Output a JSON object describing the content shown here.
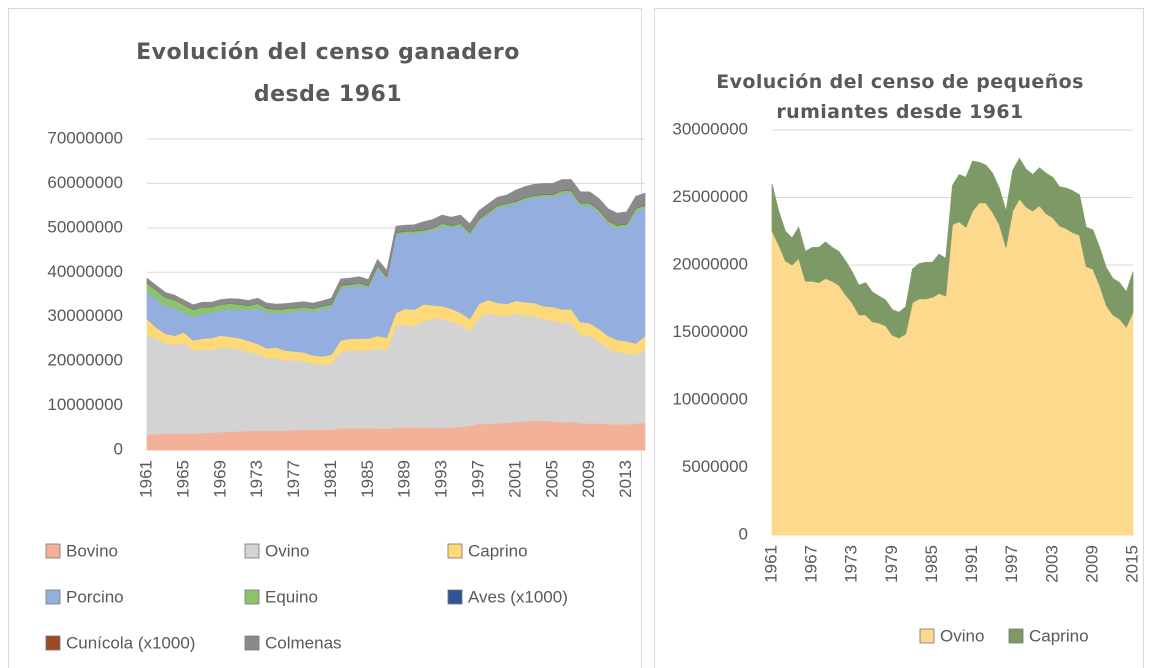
{
  "chart_data": [
    {
      "type": "stacked_area",
      "title": "Evolución del censo ganadero desde 1961",
      "categories": [
        "1961",
        null,
        null,
        null,
        "1965",
        null,
        null,
        null,
        "1969",
        null,
        null,
        null,
        "1973",
        null,
        null,
        null,
        "1977",
        null,
        null,
        null,
        "1981",
        null,
        null,
        null,
        "1985",
        null,
        null,
        null,
        "1989",
        null,
        null,
        null,
        "1993",
        null,
        null,
        null,
        "1997",
        null,
        null,
        null,
        "2001",
        null,
        null,
        null,
        "2005",
        null,
        null,
        null,
        "2009",
        null,
        null,
        null,
        "2013",
        null,
        null
      ],
      "ylim": [
        0,
        70000000
      ],
      "yticks": [
        0,
        10000000,
        20000000,
        30000000,
        40000000,
        50000000,
        60000000,
        70000000
      ],
      "grid": true,
      "legend": "bottom",
      "series": [
        {
          "name": "Bovino",
          "color": "#f4b19a",
          "values": [
            3500000,
            3600000,
            3700000,
            3700000,
            3700000,
            3700000,
            3800000,
            3900000,
            4100000,
            4200000,
            4200000,
            4300000,
            4400000,
            4400000,
            4400000,
            4400000,
            4500000,
            4600000,
            4600000,
            4600000,
            4600000,
            5000000,
            4900000,
            4900000,
            4900000,
            4900000,
            4800000,
            5000000,
            5100000,
            5100000,
            5100000,
            5000000,
            5000000,
            5000000,
            5200000,
            5500000,
            5900000,
            5900000,
            6000000,
            6200000,
            6400000,
            6500000,
            6600000,
            6600000,
            6500000,
            6200000,
            6500000,
            6000000,
            6000000,
            6000000,
            5900000,
            5800000,
            5800000,
            6000000,
            6200000
          ]
        },
        {
          "name": "Ovino",
          "color": "#d3d3d3",
          "values": [
            22500000,
            21500000,
            20300000,
            20000000,
            20500000,
            18800000,
            18800000,
            18700000,
            19000000,
            18800000,
            18500000,
            17800000,
            17200000,
            16300000,
            16300000,
            15800000,
            15700000,
            15500000,
            14800000,
            14600000,
            14900000,
            17200000,
            17500000,
            17500000,
            17600000,
            17900000,
            17700000,
            23000000,
            23200000,
            22800000,
            24000000,
            24600000,
            24600000,
            23900000,
            23000000,
            21300000,
            24000000,
            24900000,
            24300000,
            24000000,
            24400000,
            23800000,
            23500000,
            22900000,
            22700000,
            22400000,
            22200000,
            19900000,
            19700000,
            18500000,
            17000000,
            16300000,
            16000000,
            15400000,
            16500000
          ]
        },
        {
          "name": "Caprino",
          "color": "#fed978",
          "values": [
            3500000,
            2500000,
            2200000,
            2000000,
            2300000,
            2200000,
            2500000,
            2600000,
            2700000,
            2500000,
            2500000,
            2500000,
            2300000,
            2200000,
            2400000,
            2200000,
            2000000,
            1900000,
            1900000,
            1900000,
            2000000,
            2500000,
            2600000,
            2700000,
            2600000,
            2900000,
            2800000,
            2900000,
            3500000,
            3700000,
            3700000,
            3000000,
            2800000,
            2900000,
            2700000,
            2700000,
            3000000,
            3000000,
            2800000,
            2700000,
            2800000,
            3000000,
            3000000,
            2900000,
            3000000,
            3100000,
            3000000,
            2900000,
            2900000,
            2800000,
            2800000,
            2700000,
            2700000,
            2600000,
            3000000
          ]
        },
        {
          "name": "Porcino",
          "color": "#94aee0",
          "values": [
            6100000,
            6400000,
            6300000,
            6300000,
            4500000,
            5300000,
            5600000,
            5600000,
            5700000,
            6300000,
            6500000,
            6900000,
            8100000,
            8100000,
            7700000,
            8600000,
            9000000,
            9500000,
            9900000,
            10700000,
            10700000,
            11800000,
            11700000,
            11900000,
            11400000,
            15300000,
            13200000,
            17600000,
            16900000,
            17200000,
            16200000,
            16900000,
            18100000,
            18200000,
            19600000,
            19000000,
            18600000,
            19200000,
            21400000,
            22100000,
            21900000,
            23000000,
            23700000,
            24600000,
            24800000,
            26100000,
            26100000,
            26200000,
            26400000,
            26200000,
            25300000,
            25200000,
            25800000,
            29800000,
            28800000
          ]
        },
        {
          "name": "Equino",
          "color": "#8cc46c",
          "values": [
            2000000,
            2000000,
            1900000,
            1800000,
            1700000,
            1600000,
            1500000,
            1400000,
            1300000,
            1200000,
            1100000,
            1000000,
            1000000,
            900000,
            900000,
            800000,
            800000,
            700000,
            700000,
            600000,
            600000,
            600000,
            600000,
            600000,
            500000,
            500000,
            500000,
            500000,
            500000,
            500000,
            500000,
            500000,
            500000,
            500000,
            500000,
            500000,
            500000,
            500000,
            500000,
            500000,
            500000,
            500000,
            500000,
            500000,
            500000,
            600000,
            600000,
            600000,
            600000,
            600000,
            600000,
            600000,
            600000,
            600000,
            600000
          ]
        },
        {
          "name": "Aves (x1000)",
          "color": "#2f5597",
          "values": [
            40000,
            40000,
            40000,
            40000,
            40000,
            40000,
            40000,
            40000,
            40000,
            40000,
            40000,
            40000,
            40000,
            40000,
            40000,
            40000,
            40000,
            40000,
            40000,
            40000,
            60000,
            60000,
            60000,
            60000,
            60000,
            60000,
            60000,
            60000,
            60000,
            60000,
            60000,
            60000,
            60000,
            60000,
            60000,
            60000,
            60000,
            60000,
            60000,
            60000,
            80000,
            80000,
            80000,
            80000,
            80000,
            80000,
            80000,
            80000,
            80000,
            80000,
            80000,
            80000,
            80000,
            80000,
            80000
          ]
        },
        {
          "name": "Cunícola (x1000)",
          "color": "#9c4a24",
          "values": [
            10000,
            10000,
            10000,
            10000,
            10000,
            10000,
            10000,
            10000,
            10000,
            10000,
            10000,
            10000,
            10000,
            10000,
            10000,
            10000,
            10000,
            10000,
            10000,
            10000,
            20000,
            20000,
            20000,
            20000,
            20000,
            20000,
            20000,
            20000,
            20000,
            20000,
            20000,
            20000,
            20000,
            20000,
            20000,
            20000,
            20000,
            20000,
            20000,
            20000,
            15000,
            15000,
            15000,
            15000,
            15000,
            15000,
            15000,
            15000,
            15000,
            15000,
            15000,
            15000,
            15000,
            15000,
            15000
          ]
        },
        {
          "name": "Colmenas",
          "color": "#8a8a8a",
          "values": [
            1000000,
            1000000,
            1000000,
            1000000,
            1000000,
            1000000,
            1000000,
            1000000,
            1000000,
            1000000,
            1100000,
            1100000,
            1100000,
            1100000,
            1100000,
            1100000,
            1100000,
            1100000,
            1100000,
            1100000,
            1300000,
            1300000,
            1300000,
            1300000,
            1300000,
            1300000,
            1300000,
            1300000,
            1300000,
            1300000,
            1800000,
            1800000,
            1800000,
            1800000,
            1800000,
            1800000,
            1800000,
            1800000,
            1800000,
            1800000,
            2400000,
            2400000,
            2400000,
            2400000,
            2400000,
            2400000,
            2400000,
            2400000,
            2400000,
            2400000,
            2600000,
            2600000,
            2600000,
            2600000,
            2600000
          ]
        }
      ]
    },
    {
      "type": "stacked_area",
      "title": "Evolución del censo de pequeños rumiantes desde 1961",
      "categories": [
        "1961",
        null,
        null,
        null,
        null,
        null,
        "1967",
        null,
        null,
        null,
        null,
        null,
        "1973",
        null,
        null,
        null,
        null,
        null,
        "1979",
        null,
        null,
        null,
        null,
        null,
        "1985",
        null,
        null,
        null,
        null,
        null,
        "1991",
        null,
        null,
        null,
        null,
        null,
        "1997",
        null,
        null,
        null,
        null,
        null,
        "2003",
        null,
        null,
        null,
        null,
        null,
        "2009",
        null,
        null,
        null,
        null,
        null,
        "2015"
      ],
      "ylim": [
        0,
        30000000
      ],
      "yticks": [
        0,
        5000000,
        10000000,
        15000000,
        20000000,
        25000000,
        30000000
      ],
      "grid": true,
      "legend": "bottom",
      "series": [
        {
          "name": "Ovino",
          "color": "#fdd98e",
          "values": [
            22500000,
            21500000,
            20300000,
            20000000,
            20500000,
            18800000,
            18800000,
            18700000,
            19000000,
            18800000,
            18500000,
            17800000,
            17200000,
            16300000,
            16300000,
            15800000,
            15700000,
            15500000,
            14800000,
            14600000,
            14900000,
            17200000,
            17500000,
            17500000,
            17600000,
            17900000,
            17700000,
            23000000,
            23200000,
            22800000,
            24000000,
            24600000,
            24600000,
            23900000,
            23000000,
            21300000,
            24000000,
            24900000,
            24300000,
            24000000,
            24400000,
            23800000,
            23500000,
            22900000,
            22700000,
            22400000,
            22200000,
            19900000,
            19700000,
            18500000,
            17000000,
            16300000,
            16000000,
            15400000,
            16500000
          ]
        },
        {
          "name": "Caprino",
          "color": "#7d9a66",
          "values": [
            3500000,
            2500000,
            2200000,
            2000000,
            2300000,
            2200000,
            2500000,
            2600000,
            2700000,
            2500000,
            2500000,
            2500000,
            2300000,
            2200000,
            2400000,
            2200000,
            2000000,
            1900000,
            1900000,
            1900000,
            2000000,
            2500000,
            2600000,
            2700000,
            2600000,
            2900000,
            2800000,
            2900000,
            3500000,
            3700000,
            3700000,
            3000000,
            2800000,
            2900000,
            2700000,
            2700000,
            3000000,
            3000000,
            2800000,
            2700000,
            2800000,
            3000000,
            3000000,
            2900000,
            3000000,
            3100000,
            3000000,
            2900000,
            2900000,
            2800000,
            2800000,
            2700000,
            2700000,
            2600000,
            3000000
          ]
        }
      ]
    }
  ]
}
